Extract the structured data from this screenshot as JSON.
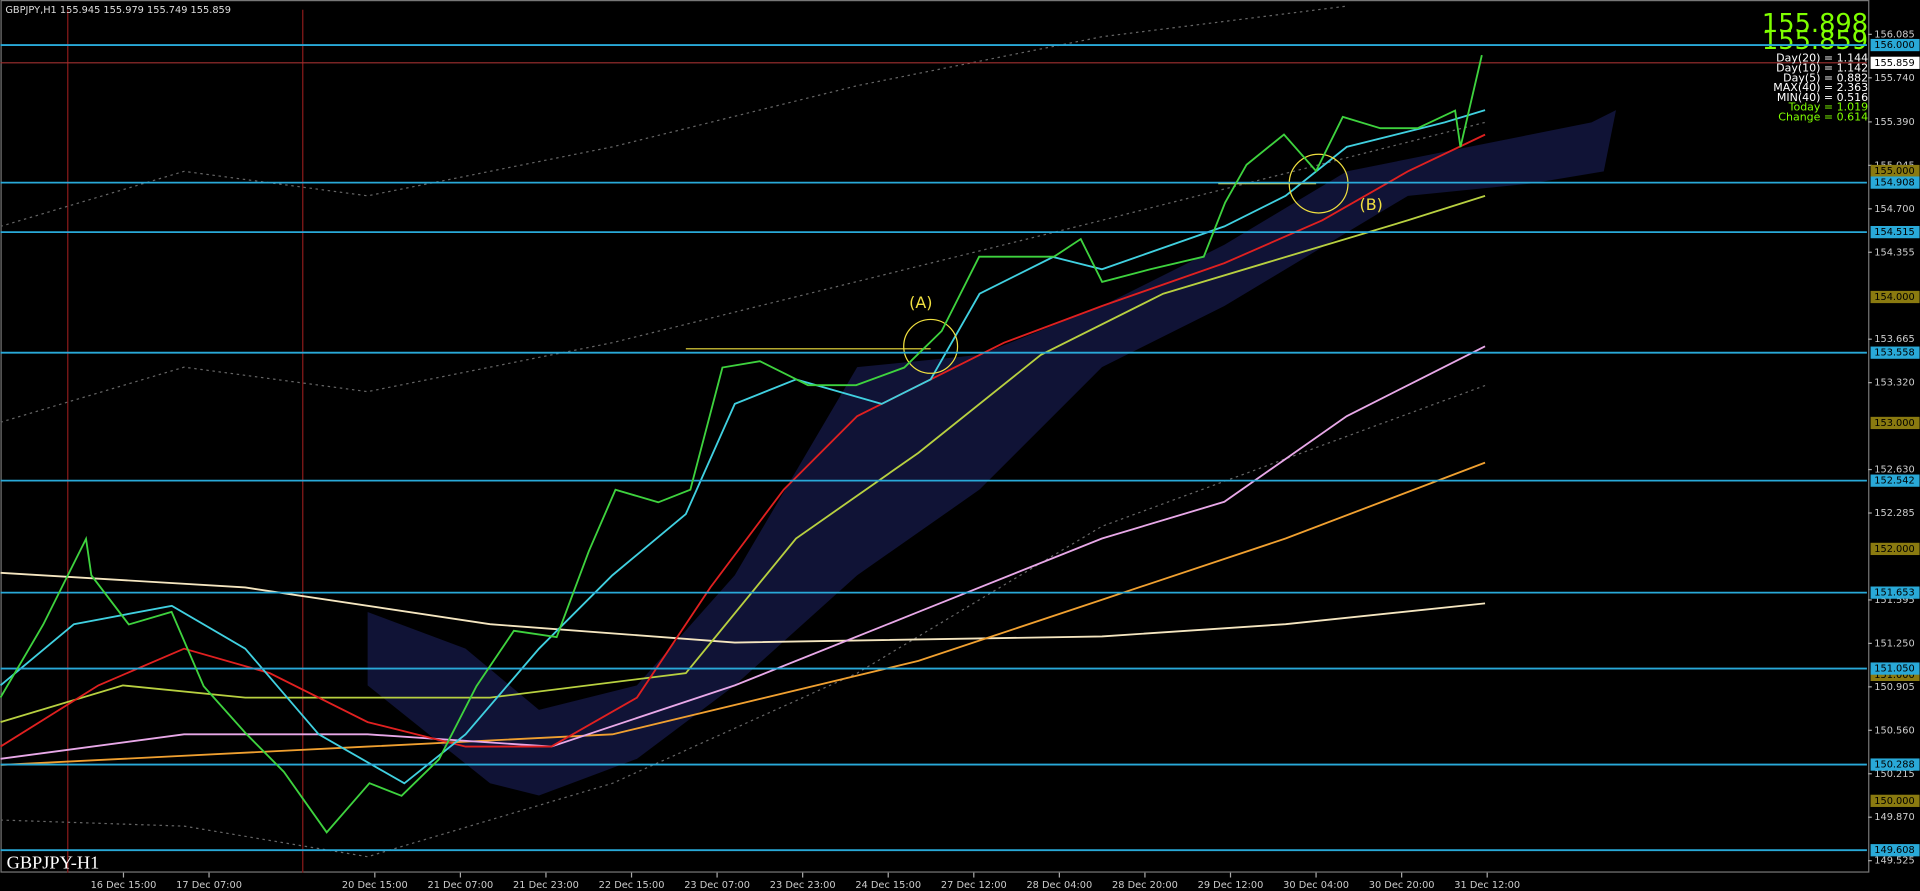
{
  "header": {
    "symbol_info": "GBPJPY,H1  155.945 155.979 155.749 155.859"
  },
  "chart_data": {
    "type": "line",
    "color": "#3ed23e",
    "x": [
      0,
      8,
      16,
      17,
      24,
      32,
      38,
      46,
      53,
      61,
      69,
      75,
      82,
      89,
      96,
      104,
      110,
      115,
      123,
      129,
      135,
      142,
      151,
      160,
      169,
      176,
      183,
      190,
      197,
      202,
      206,
      215,
      225,
      229,
      233,
      240,
      246,
      251,
      258,
      265,
      272,
      273,
      277
    ],
    "values": [
      150.82,
      151.4,
      152.08,
      151.79,
      151.4,
      151.5,
      150.91,
      150.53,
      150.23,
      149.75,
      150.14,
      150.04,
      150.33,
      150.91,
      151.35,
      151.3,
      151.98,
      152.47,
      152.37,
      152.47,
      153.44,
      153.49,
      153.3,
      153.3,
      153.44,
      153.73,
      154.32,
      154.32,
      154.32,
      154.46,
      154.12,
      154.22,
      154.32,
      154.75,
      155.05,
      155.29,
      155,
      155.43,
      155.34,
      155.34,
      155.48,
      155.19,
      155.92
    ],
    "xlim": [
      0,
      349
    ],
    "ylim": [
      149.43,
      156.28
    ],
    "yticks": [
      156.085,
      {
        "value": 155.74,
        "label": "155.740"
      },
      {
        "value": 155.39,
        "label": "155.390"
      },
      155.045,
      {
        "value": 154.7,
        "label": "154.700"
      },
      154.355,
      153.665,
      {
        "value": 153.32,
        "label": "153.320"
      },
      {
        "value": 152.63,
        "label": "152.630"
      },
      152.285,
      151.595,
      {
        "value": 151.25,
        "label": "151.250"
      },
      150.905,
      {
        "value": 150.56,
        "label": "150.560"
      },
      150.215,
      {
        "value": 149.87,
        "label": "149.870"
      },
      149.525
    ],
    "xticks": [
      {
        "value": 23,
        "label": "16 Dec 15:00"
      },
      {
        "value": 39,
        "label": "17 Dec 07:00"
      },
      {
        "value": 70,
        "label": "20 Dec 15:00"
      },
      {
        "value": 86,
        "label": "21 Dec 07:00"
      },
      {
        "value": 102,
        "label": "21 Dec 23:00"
      },
      {
        "value": 118,
        "label": "22 Dec 15:00"
      },
      {
        "value": 134,
        "label": "23 Dec 07:00"
      },
      {
        "value": 150,
        "label": "23 Dec 23:00"
      },
      {
        "value": 166,
        "label": "24 Dec 15:00"
      },
      {
        "value": 182,
        "label": "27 Dec 12:00"
      },
      {
        "value": 198,
        "label": "28 Dec 04:00"
      },
      {
        "value": 214,
        "label": "28 Dec 20:00"
      },
      {
        "value": 230,
        "label": "29 Dec 12:00"
      },
      {
        "value": 246,
        "label": "30 Dec 04:00"
      },
      {
        "value": 262,
        "label": "30 Dec 20:00"
      },
      {
        "value": 278,
        "label": "31 Dec 12:00"
      }
    ],
    "levels": [
      {
        "value": 156,
        "label": "156.000"
      },
      {
        "value": 154.908,
        "label": "154.908"
      },
      {
        "value": 154.515,
        "label": "154.515"
      },
      {
        "value": 153.558,
        "label": "153.558"
      },
      {
        "value": 152.542,
        "label": "152.542"
      },
      {
        "value": 151.653,
        "label": "151.653"
      },
      {
        "value": 151.05,
        "label": "151.050"
      },
      {
        "value": 150.288,
        "label": "150.288"
      },
      {
        "value": 149.608,
        "label": "149.608"
      }
    ],
    "level_color": "#29a9d8",
    "round_levels": [
      {
        "value": 155,
        "label": "155.000"
      },
      {
        "value": 154,
        "label": "154.000"
      },
      {
        "value": 153,
        "label": "153.000"
      },
      {
        "value": 152,
        "label": "152.000"
      },
      {
        "value": 151,
        "label": "151.000"
      },
      {
        "value": 150,
        "label": "150.000"
      }
    ],
    "current_price": 155.859,
    "annotations": [
      "(A)",
      "(B)"
    ],
    "watermark": "GBPJPY-H1"
  },
  "info_panel": {
    "bid": "155.898",
    "ask": "155.859",
    "stats": [
      "Day(20) = 1.144",
      "Day(10) = 1.142",
      "Day(5) = 0.882",
      "MAX(40) = 2.363",
      "MIN(40) = 0.516",
      "Today = 1.019",
      "Change = 0.614"
    ]
  }
}
